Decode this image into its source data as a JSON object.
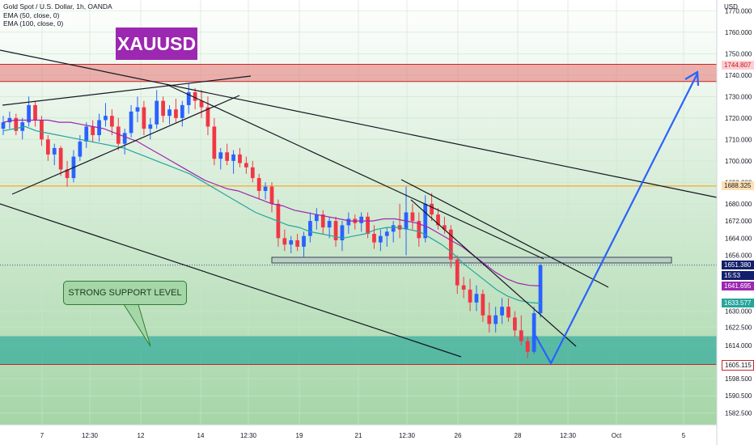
{
  "legend": {
    "line1": "Gold Spot / U.S. Dollar, 1h, OANDA",
    "line2": "EMA (50, close, 0)",
    "line3": "EMA (100, close, 0)"
  },
  "ticker_label": "XAUUSD",
  "callout_label": "STRONG SUPPORT LEVEL",
  "currency": "USD",
  "price_tags": [
    {
      "id": "resistance",
      "text": "1744.807",
      "price": 1744.807,
      "bg": "#ffcdd2",
      "fg": "#b71c1c"
    },
    {
      "id": "orange-line",
      "text": "1688.325",
      "price": 1688.325,
      "bg": "#ffe0b2",
      "fg": "#131722"
    },
    {
      "id": "last-price",
      "text": "1651.380",
      "price": 1651.38,
      "bg": "#131f6b",
      "fg": "#ffffff"
    },
    {
      "id": "countdown",
      "text": "15:53",
      "price": 1646.6,
      "bg": "#131f6b",
      "fg": "#ffffff"
    },
    {
      "id": "ema100",
      "text": "1641.695",
      "price": 1641.695,
      "bg": "#9c27b0",
      "fg": "#ffffff"
    },
    {
      "id": "ema50",
      "text": "1633.577",
      "price": 1633.577,
      "bg": "#26a69a",
      "fg": "#ffffff"
    },
    {
      "id": "support",
      "text": "1605.115",
      "price": 1605.115,
      "bg": "#ffffff",
      "fg": "#131722"
    }
  ],
  "chart_data": {
    "type": "candlestick",
    "title": "Gold Spot / U.S. Dollar, 1h, OANDA",
    "ylim": [
      1577,
      1775
    ],
    "y_ticks": [
      1770,
      1760,
      1750,
      1740,
      1730,
      1720,
      1710,
      1700,
      1690,
      1680,
      1672,
      1664,
      1656,
      1630,
      1622.5,
      1614,
      1598.5,
      1590.5,
      1582.5
    ],
    "y_tick_labels": [
      "1770.000",
      "1760.000",
      "1750.000",
      "1740.000",
      "1730.000",
      "1720.000",
      "1710.000",
      "1700.000",
      "1690.000",
      "1680.000",
      "1672.000",
      "1664.000",
      "1656.000",
      "1630.000",
      "1622.500",
      "1614.000",
      "1598.500",
      "1590.500",
      "1582.500"
    ],
    "x_tick_labels": [
      "7",
      "12:30",
      "12",
      "14",
      "12:30",
      "19",
      "21",
      "12:30",
      "26",
      "28",
      "12:30",
      "Oct",
      "5"
    ],
    "colors": {
      "up": "#2962ff",
      "down": "#f23645",
      "ema50": "#26a69a",
      "ema100": "#9c27b0"
    },
    "zones": [
      {
        "name": "resistance",
        "from": 1737,
        "to": 1745,
        "color": "#e57373"
      },
      {
        "name": "support",
        "from": 1605.1,
        "to": 1618.3,
        "color": "#26a69a"
      }
    ],
    "levels": [
      {
        "name": "orange-line",
        "price": 1688.3,
        "color": "#ff9800"
      },
      {
        "name": "last-price",
        "price": 1651.38,
        "color": "#131f6b"
      }
    ],
    "candles": [
      [
        1715,
        1721,
        1712,
        1718
      ],
      [
        1718,
        1723,
        1715,
        1720
      ],
      [
        1720,
        1722,
        1712,
        1714
      ],
      [
        1714,
        1720,
        1710,
        1718
      ],
      [
        1718,
        1730,
        1716,
        1726
      ],
      [
        1726,
        1728,
        1716,
        1719
      ],
      [
        1719,
        1721,
        1707,
        1710
      ],
      [
        1710,
        1712,
        1700,
        1703
      ],
      [
        1703,
        1708,
        1698,
        1706
      ],
      [
        1706,
        1707,
        1693,
        1696
      ],
      [
        1696,
        1700,
        1688,
        1692
      ],
      [
        1692,
        1705,
        1690,
        1702
      ],
      [
        1702,
        1712,
        1700,
        1709
      ],
      [
        1709,
        1718,
        1706,
        1716
      ],
      [
        1716,
        1719,
        1709,
        1712
      ],
      [
        1712,
        1722,
        1709,
        1719
      ],
      [
        1719,
        1727,
        1716,
        1721
      ],
      [
        1721,
        1724,
        1712,
        1716
      ],
      [
        1716,
        1720,
        1705,
        1708
      ],
      [
        1708,
        1715,
        1703,
        1713
      ],
      [
        1713,
        1726,
        1711,
        1723
      ],
      [
        1723,
        1730,
        1718,
        1725
      ],
      [
        1725,
        1728,
        1712,
        1715
      ],
      [
        1715,
        1720,
        1710,
        1717
      ],
      [
        1717,
        1733,
        1715,
        1728
      ],
      [
        1728,
        1730,
        1718,
        1721
      ],
      [
        1721,
        1726,
        1717,
        1724
      ],
      [
        1724,
        1729,
        1718,
        1720
      ],
      [
        1720,
        1728,
        1716,
        1726
      ],
      [
        1726,
        1736,
        1722,
        1732
      ],
      [
        1732,
        1734,
        1724,
        1728
      ],
      [
        1728,
        1733,
        1720,
        1725
      ],
      [
        1725,
        1730,
        1712,
        1716
      ],
      [
        1716,
        1720,
        1698,
        1701
      ],
      [
        1701,
        1706,
        1696,
        1704
      ],
      [
        1704,
        1708,
        1698,
        1700
      ],
      [
        1700,
        1705,
        1694,
        1703
      ],
      [
        1703,
        1706,
        1697,
        1699
      ],
      [
        1699,
        1702,
        1694,
        1697
      ],
      [
        1697,
        1700,
        1690,
        1692
      ],
      [
        1692,
        1694,
        1682,
        1686
      ],
      [
        1686,
        1690,
        1682,
        1688
      ],
      [
        1688,
        1690,
        1676,
        1680
      ],
      [
        1680,
        1682,
        1660,
        1664
      ],
      [
        1664,
        1668,
        1658,
        1661
      ],
      [
        1661,
        1665,
        1657,
        1663
      ],
      [
        1663,
        1666,
        1658,
        1660
      ],
      [
        1660,
        1667,
        1655,
        1665
      ],
      [
        1665,
        1676,
        1662,
        1672
      ],
      [
        1672,
        1678,
        1668,
        1675
      ],
      [
        1675,
        1677,
        1666,
        1669
      ],
      [
        1669,
        1674,
        1664,
        1672
      ],
      [
        1672,
        1674,
        1660,
        1663
      ],
      [
        1663,
        1672,
        1658,
        1670
      ],
      [
        1670,
        1676,
        1666,
        1673
      ],
      [
        1673,
        1675,
        1668,
        1671
      ],
      [
        1671,
        1676,
        1667,
        1674
      ],
      [
        1674,
        1676,
        1664,
        1666
      ],
      [
        1666,
        1670,
        1659,
        1662
      ],
      [
        1662,
        1668,
        1658,
        1665
      ],
      [
        1665,
        1669,
        1660,
        1667
      ],
      [
        1667,
        1672,
        1662,
        1670
      ],
      [
        1670,
        1680,
        1664,
        1668
      ],
      [
        1668,
        1688,
        1656,
        1676
      ],
      [
        1676,
        1680,
        1668,
        1672
      ],
      [
        1672,
        1676,
        1660,
        1664
      ],
      [
        1664,
        1684,
        1662,
        1680
      ],
      [
        1680,
        1685,
        1672,
        1675
      ],
      [
        1675,
        1678,
        1668,
        1670
      ],
      [
        1670,
        1674,
        1666,
        1668
      ],
      [
        1668,
        1670,
        1650,
        1654
      ],
      [
        1654,
        1656,
        1638,
        1642
      ],
      [
        1642,
        1646,
        1636,
        1640
      ],
      [
        1640,
        1645,
        1630,
        1634
      ],
      [
        1634,
        1642,
        1630,
        1638
      ],
      [
        1638,
        1640,
        1625,
        1628
      ],
      [
        1628,
        1634,
        1620,
        1624
      ],
      [
        1624,
        1632,
        1620,
        1628
      ],
      [
        1628,
        1636,
        1624,
        1632
      ],
      [
        1632,
        1636,
        1625,
        1627
      ],
      [
        1627,
        1630,
        1618,
        1621
      ],
      [
        1621,
        1628,
        1614,
        1616
      ],
      [
        1616,
        1618,
        1608,
        1611
      ],
      [
        1611,
        1632,
        1610,
        1629
      ],
      [
        1629,
        1652,
        1627,
        1651.4
      ]
    ],
    "ema50": [
      1714,
      1715,
      1716,
      1714,
      1713,
      1712,
      1711,
      1710,
      1709,
      1708,
      1707,
      1706,
      1704,
      1702,
      1700,
      1698,
      1696,
      1694,
      1691,
      1688,
      1685,
      1682,
      1679,
      1676,
      1674,
      1672,
      1670,
      1669,
      1667,
      1666,
      1665,
      1664,
      1665,
      1666,
      1668,
      1669,
      1669,
      1668,
      1667,
      1664,
      1661,
      1657,
      1652,
      1648,
      1644,
      1640,
      1637,
      1635,
      1634,
      1633.6
    ],
    "ema100": [
      1718,
      1719,
      1719,
      1719,
      1719,
      1718,
      1718,
      1717,
      1716,
      1715,
      1713,
      1711,
      1709,
      1706,
      1703,
      1700,
      1697,
      1694,
      1691,
      1689,
      1687,
      1686,
      1684,
      1682,
      1680,
      1679,
      1677,
      1676,
      1675,
      1674,
      1673,
      1672,
      1672,
      1672,
      1673,
      1673,
      1672,
      1671,
      1669,
      1666,
      1663,
      1660,
      1656,
      1652,
      1648,
      1645,
      1643,
      1642,
      1641.7
    ]
  }
}
